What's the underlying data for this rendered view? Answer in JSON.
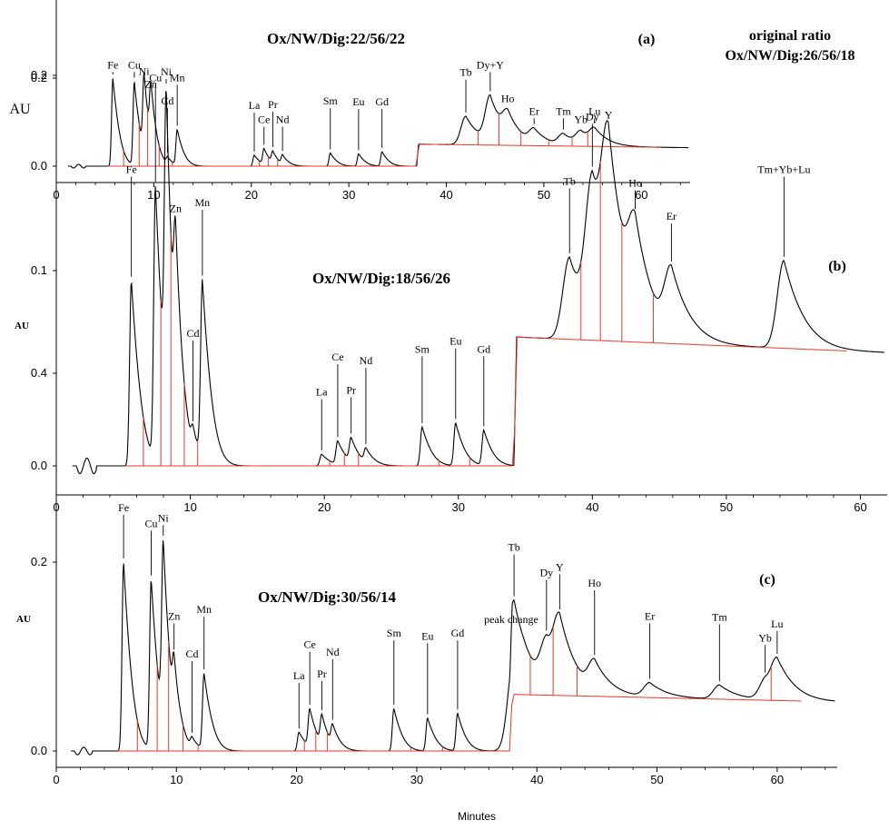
{
  "figure": {
    "xlabel": "Minutes",
    "colors": {
      "trace": "#000000",
      "baseline": "#e8372f",
      "axis": "#000000"
    }
  },
  "chart_data": [
    {
      "type": "line",
      "panel_label": "(a)",
      "title": "Ox/NW/Dig:22/56/22",
      "note_lines": [
        "original ratio",
        "Ox/NW/Dig:26/56/18"
      ],
      "ylabel": "AU",
      "xlim": [
        0,
        65
      ],
      "ylim": [
        -0.03,
        0.28
      ],
      "x_ticks": [
        0,
        10,
        20,
        30,
        40,
        50,
        60
      ],
      "x_tick_labels": [
        "0",
        "10",
        "20",
        "30",
        "40",
        "50",
        "60"
      ],
      "y_ticks": [
        0.0,
        0.2
      ],
      "y_tick_labels": [
        "0.0",
        "0.2"
      ],
      "grid": false,
      "step": {
        "x": 37.0,
        "from": 0.0,
        "to": 0.05
      },
      "peaks": [
        {
          "name": "Fe",
          "x": 5.8,
          "height": 0.2,
          "label_y": 0.222
        },
        {
          "name": "Cu",
          "x": 8.0,
          "height": 0.19,
          "label_y": 0.222
        },
        {
          "name": "Ni",
          "x": 9.0,
          "height": 0.17,
          "label_y": 0.207
        },
        {
          "name": "Zn",
          "x": 9.7,
          "height": 0.12,
          "label_y": 0.178
        },
        {
          "name": "Cd",
          "x": 11.4,
          "height": 0.015,
          "label_y": 0.14
        },
        {
          "name": "Mn",
          "x": 12.4,
          "height": 0.08,
          "label_y": 0.193
        },
        {
          "name": "La",
          "x": 20.3,
          "height": 0.025,
          "label_y": 0.13
        },
        {
          "name": "Ce",
          "x": 21.3,
          "height": 0.035,
          "label_y": 0.098
        },
        {
          "name": "Pr",
          "x": 22.2,
          "height": 0.025,
          "label_y": 0.132
        },
        {
          "name": "Nd",
          "x": 23.2,
          "height": 0.02,
          "label_y": 0.098
        },
        {
          "name": "Sm",
          "x": 28.1,
          "height": 0.03,
          "label_y": 0.14
        },
        {
          "name": "Eu",
          "x": 31.0,
          "height": 0.028,
          "label_y": 0.138
        },
        {
          "name": "Gd",
          "x": 33.4,
          "height": 0.033,
          "label_y": 0.138
        },
        {
          "name": "Tb",
          "x": 42.0,
          "height": 0.065,
          "label_y": 0.205
        },
        {
          "name": "Dy+Y",
          "x": 44.5,
          "height": 0.103,
          "label_y": 0.222
        },
        {
          "name": "Ho",
          "x": 46.3,
          "height": 0.05,
          "label_y": 0.145
        },
        {
          "name": "Er",
          "x": 49.0,
          "height": 0.03,
          "label_y": 0.117
        },
        {
          "name": "Tm",
          "x": 52.0,
          "height": 0.025,
          "label_y": 0.117
        },
        {
          "name": "Yb",
          "x": 53.8,
          "height": 0.028,
          "label_y": 0.098
        },
        {
          "name": "Lu",
          "x": 55.2,
          "height": 0.03,
          "label_y": 0.117
        }
      ]
    },
    {
      "type": "line",
      "panel_label": "(b)",
      "title": "Ox/NW/Dig:18/56/26",
      "ylabel": "AU",
      "xlim": [
        0,
        62
      ],
      "ylim": [
        -0.03,
        0.25
      ],
      "x_ticks": [
        0,
        10,
        20,
        30,
        40,
        50,
        60
      ],
      "x_tick_labels": [
        "0",
        "10",
        "20",
        "30",
        "40",
        "50",
        "60"
      ],
      "y_ticks": [
        0.0,
        0.1,
        0.2
      ],
      "y_tick_labels": [
        "0.0",
        "0.1",
        "0.2"
      ],
      "grid": false,
      "step": {
        "x": 34.2,
        "from": 0.0,
        "to": 0.066
      },
      "peaks": [
        {
          "name": "Fe",
          "x": 5.6,
          "height": 0.095,
          "label_y": 0.15
        },
        {
          "name": "Cu",
          "x": 7.4,
          "height": 0.14,
          "label_y": 0.197
        },
        {
          "name": "Ni",
          "x": 8.2,
          "height": 0.15,
          "label_y": 0.2
        },
        {
          "name": "Zn",
          "x": 8.9,
          "height": 0.06,
          "label_y": 0.13
        },
        {
          "name": "Cd",
          "x": 10.2,
          "height": 0.01,
          "label_y": 0.066
        },
        {
          "name": "Mn",
          "x": 10.9,
          "height": 0.09,
          "label_y": 0.133
        },
        {
          "name": "La",
          "x": 19.8,
          "height": 0.006,
          "label_y": 0.036
        },
        {
          "name": "Ce",
          "x": 21.0,
          "height": 0.012,
          "label_y": 0.054
        },
        {
          "name": "Pr",
          "x": 22.0,
          "height": 0.012,
          "label_y": 0.037
        },
        {
          "name": "Nd",
          "x": 23.1,
          "height": 0.007,
          "label_y": 0.052
        },
        {
          "name": "Sm",
          "x": 27.3,
          "height": 0.02,
          "label_y": 0.058
        },
        {
          "name": "Eu",
          "x": 29.8,
          "height": 0.022,
          "label_y": 0.062
        },
        {
          "name": "Gd",
          "x": 31.9,
          "height": 0.018,
          "label_y": 0.058
        },
        {
          "name": "Tb",
          "x": 38.3,
          "height": 0.042,
          "label_y": 0.144
        },
        {
          "name": "Dy",
          "x": 40.0,
          "height": 0.07,
          "label_y": 0.177
        },
        {
          "name": "Y",
          "x": 41.2,
          "height": 0.075,
          "label_y": 0.178
        },
        {
          "name": "Ho",
          "x": 43.2,
          "height": 0.04,
          "label_y": 0.143
        },
        {
          "name": "Er",
          "x": 45.9,
          "height": 0.032,
          "label_y": 0.126
        },
        {
          "name": "Tm+Yb+Lu",
          "x": 54.3,
          "height": 0.045,
          "label_y": 0.15
        }
      ]
    },
    {
      "type": "line",
      "panel_label": "(c)",
      "title": "Ox/NW/Dig:30/56/14",
      "annotation": "peak change",
      "ylabel": "AU",
      "xlim": [
        0,
        65
      ],
      "ylim": [
        -0.05,
        0.43
      ],
      "x_ticks": [
        0,
        10,
        20,
        30,
        40,
        50,
        60
      ],
      "x_tick_labels": [
        "0",
        "10",
        "20",
        "30",
        "40",
        "50",
        "60"
      ],
      "y_ticks": [
        0.0,
        0.2,
        0.4
      ],
      "y_tick_labels": [
        "0.0",
        "0.2",
        "0.4"
      ],
      "grid": false,
      "step": {
        "x": 37.8,
        "from": 0.0,
        "to": 0.06
      },
      "peaks": [
        {
          "name": "Fe",
          "x": 5.6,
          "height": 0.2,
          "label_y": 0.254
        },
        {
          "name": "Cu",
          "x": 7.9,
          "height": 0.18,
          "label_y": 0.237
        },
        {
          "name": "Ni",
          "x": 8.9,
          "height": 0.185,
          "label_y": 0.243
        },
        {
          "name": "Zn",
          "x": 9.8,
          "height": 0.05,
          "label_y": 0.139
        },
        {
          "name": "Cd",
          "x": 11.3,
          "height": 0.01,
          "label_y": 0.099
        },
        {
          "name": "Mn",
          "x": 12.3,
          "height": 0.08,
          "label_y": 0.146
        },
        {
          "name": "La",
          "x": 20.2,
          "height": 0.02,
          "label_y": 0.076
        },
        {
          "name": "Ce",
          "x": 21.1,
          "height": 0.04,
          "label_y": 0.109
        },
        {
          "name": "Pr",
          "x": 22.1,
          "height": 0.03,
          "label_y": 0.078
        },
        {
          "name": "Nd",
          "x": 23.0,
          "height": 0.02,
          "label_y": 0.101
        },
        {
          "name": "Sm",
          "x": 28.1,
          "height": 0.045,
          "label_y": 0.121
        },
        {
          "name": "Eu",
          "x": 30.9,
          "height": 0.035,
          "label_y": 0.118
        },
        {
          "name": "Gd",
          "x": 33.4,
          "height": 0.04,
          "label_y": 0.121
        },
        {
          "name": "Tb",
          "x": 38.1,
          "height": 0.1,
          "label_y": 0.212
        },
        {
          "name": "Dy",
          "x": 40.8,
          "height": 0.045,
          "label_y": 0.185
        },
        {
          "name": "Y",
          "x": 41.9,
          "height": 0.06,
          "label_y": 0.191
        },
        {
          "name": "Ho",
          "x": 44.8,
          "height": 0.03,
          "label_y": 0.174
        },
        {
          "name": "Er",
          "x": 49.4,
          "height": 0.015,
          "label_y": 0.139
        },
        {
          "name": "Tm",
          "x": 55.2,
          "height": 0.015,
          "label_y": 0.138
        },
        {
          "name": "Yb",
          "x": 59.0,
          "height": 0.02,
          "label_y": 0.116
        },
        {
          "name": "Lu",
          "x": 60.0,
          "height": 0.035,
          "label_y": 0.131
        }
      ]
    }
  ]
}
